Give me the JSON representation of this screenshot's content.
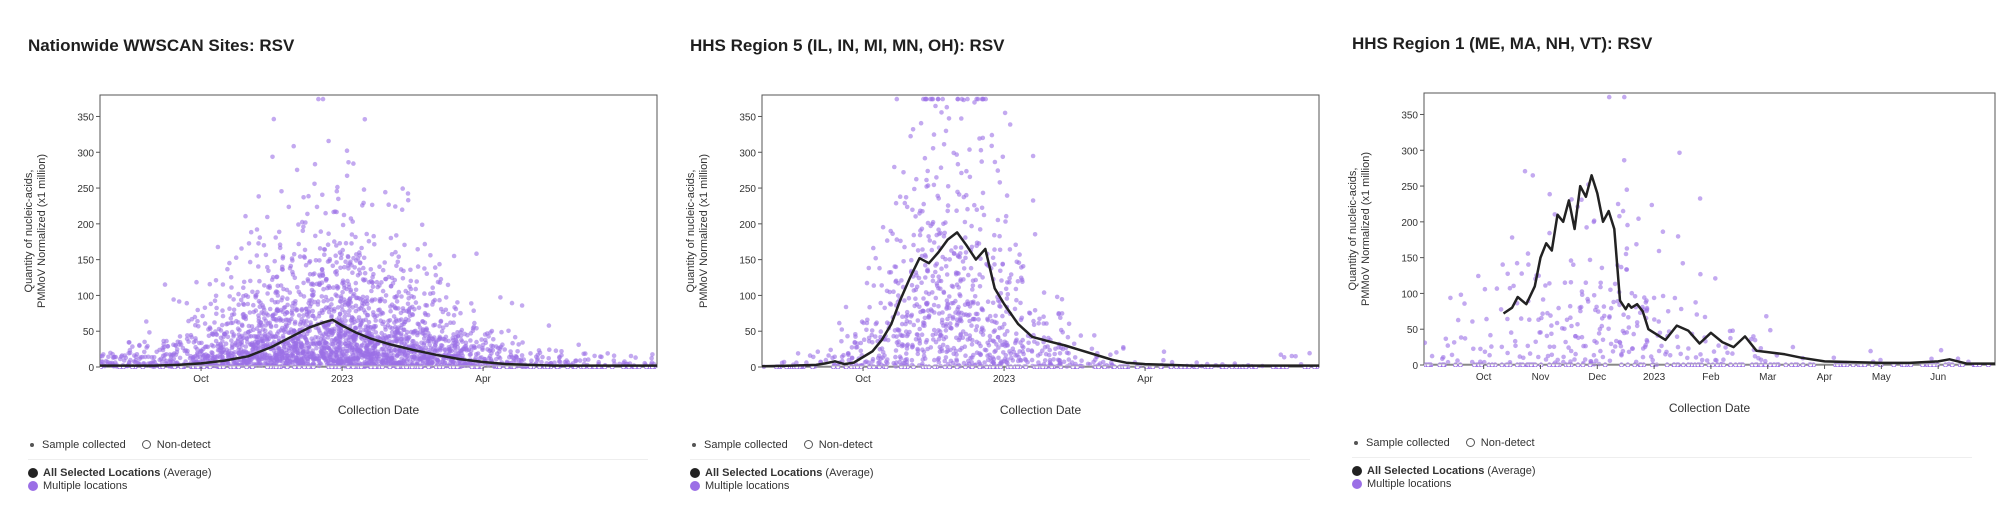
{
  "panels": [
    {
      "title": "Nationwide WWSCAN Sites: RSV",
      "legend": {
        "sample": "Sample collected",
        "nondetect": "Non-detect",
        "avg_bold": "All Selected Locations",
        "avg_suffix": " (Average)",
        "multi": "Multiple locations"
      },
      "colors": {
        "avg": "#222222",
        "points": "#9b6fe6"
      }
    },
    {
      "title": "HHS Region 5 (IL, IN, MI, MN, OH): RSV",
      "legend": {
        "sample": "Sample collected",
        "nondetect": "Non-detect",
        "avg_bold": "All Selected Locations",
        "avg_suffix": " (Average)",
        "multi": "Multiple locations"
      },
      "colors": {
        "avg": "#222222",
        "points": "#9b6fe6"
      }
    },
    {
      "title": "HHS Region 1 (ME, MA, NH, VT): RSV",
      "legend": {
        "sample": "Sample collected",
        "nondetect": "Non-detect",
        "avg_bold": "All Selected Locations",
        "avg_suffix": " (Average)",
        "multi": "Multiple locations"
      },
      "colors": {
        "avg": "#222222",
        "points": "#9b6fe6"
      }
    }
  ],
  "chart_data": [
    {
      "type": "scatter",
      "title": "Nationwide WWSCAN Sites: RSV",
      "xlabel": "Collection Date",
      "ylabel": [
        "Quantity of nucleic-acids,",
        "PMMoV Normalized (x1 million)"
      ],
      "x_unit": "months since Jul 1 2022",
      "xlim": [
        0.85,
        12.7
      ],
      "ylim": [
        0,
        380
      ],
      "yticks": [
        0,
        50,
        100,
        150,
        200,
        250,
        300,
        350
      ],
      "xticks": [
        {
          "label": "Oct",
          "x": 3.0
        },
        {
          "label": "2023",
          "x": 6.0
        },
        {
          "label": "Apr",
          "x": 9.0
        }
      ],
      "series": [
        {
          "name": "All Selected Locations (Average)",
          "x": [
            0.85,
            1.5,
            2.0,
            2.5,
            3.0,
            3.5,
            4.0,
            4.5,
            5.0,
            5.3,
            5.6,
            5.8,
            6.0,
            6.3,
            6.6,
            7.0,
            7.5,
            8.0,
            8.5,
            9.0,
            9.5,
            10.0,
            10.5,
            11.0,
            11.5,
            12.0,
            12.7
          ],
          "y": [
            2,
            2,
            2,
            3,
            5,
            9,
            15,
            28,
            45,
            55,
            62,
            66,
            58,
            48,
            40,
            32,
            24,
            17,
            11,
            7,
            4,
            3,
            2,
            2,
            2,
            2,
            2
          ]
        }
      ],
      "scatter": {
        "name": "Multiple locations",
        "peak_x": 5.8,
        "peak_y": 60,
        "spread_x": 1.9,
        "n_points": 2600,
        "nondetect_y": 0,
        "saturated_y": 380
      }
    },
    {
      "type": "scatter",
      "title": "HHS Region 5 (IL, IN, MI, MN, OH): RSV",
      "xlabel": "Collection Date",
      "ylabel": [
        "Quantity of nucleic-acids,",
        "PMMoV Normalized (x1 million)"
      ],
      "x_unit": "months since Jul 1 2022",
      "xlim": [
        0.85,
        12.7
      ],
      "ylim": [
        0,
        380
      ],
      "yticks": [
        0,
        50,
        100,
        150,
        200,
        250,
        300,
        350
      ],
      "xticks": [
        {
          "label": "Oct",
          "x": 3.0
        },
        {
          "label": "2023",
          "x": 6.0
        },
        {
          "label": "Apr",
          "x": 9.0
        }
      ],
      "series": [
        {
          "name": "All Selected Locations (Average)",
          "x": [
            0.85,
            1.5,
            2.0,
            2.2,
            2.4,
            2.6,
            2.8,
            3.0,
            3.2,
            3.4,
            3.6,
            3.8,
            4.0,
            4.2,
            4.4,
            4.6,
            4.8,
            5.0,
            5.2,
            5.4,
            5.6,
            5.8,
            6.0,
            6.3,
            6.6,
            7.0,
            7.3,
            7.6,
            8.0,
            8.3,
            8.6,
            9.0,
            9.5,
            10.0,
            11.0,
            12.7
          ],
          "y": [
            1,
            2,
            3,
            5,
            8,
            4,
            6,
            14,
            22,
            38,
            60,
            95,
            125,
            152,
            145,
            160,
            178,
            188,
            170,
            150,
            165,
            110,
            88,
            60,
            42,
            35,
            30,
            24,
            16,
            10,
            6,
            4,
            3,
            2,
            2,
            2
          ]
        }
      ],
      "scatter": {
        "name": "Multiple locations",
        "peak_x": 4.9,
        "peak_y": 130,
        "spread_x": 1.2,
        "n_points": 900,
        "nondetect_y": 0,
        "saturated_y": 380
      }
    },
    {
      "type": "scatter",
      "title": "HHS Region 1 (ME, MA, NH, VT): RSV",
      "xlabel": "Collection Date",
      "ylabel": [
        "Quantity of nucleic-acids,",
        "PMMoV Normalized (x1 million)"
      ],
      "x_unit": "months since Sep 1 2022",
      "xlim": [
        -0.05,
        10.0
      ],
      "ylim": [
        0,
        380
      ],
      "yticks": [
        0,
        50,
        100,
        150,
        200,
        250,
        300,
        350
      ],
      "xticks": [
        {
          "label": "Oct",
          "x": 1.0
        },
        {
          "label": "Nov",
          "x": 2.0
        },
        {
          "label": "Dec",
          "x": 3.0
        },
        {
          "label": "2023",
          "x": 4.0
        },
        {
          "label": "Feb",
          "x": 5.0
        },
        {
          "label": "Mar",
          "x": 6.0
        },
        {
          "label": "Apr",
          "x": 7.0
        },
        {
          "label": "May",
          "x": 8.0
        },
        {
          "label": "Jun",
          "x": 9.0
        }
      ],
      "series": [
        {
          "name": "All Selected Locations (Average)",
          "x": [
            1.35,
            1.5,
            1.6,
            1.75,
            1.9,
            2.0,
            2.1,
            2.2,
            2.3,
            2.4,
            2.5,
            2.6,
            2.7,
            2.8,
            2.9,
            3.0,
            3.1,
            3.2,
            3.3,
            3.4,
            3.5,
            3.55,
            3.6,
            3.7,
            3.8,
            3.9,
            4.0,
            4.2,
            4.4,
            4.6,
            4.8,
            5.0,
            5.2,
            5.4,
            5.6,
            5.8,
            6.0,
            6.3,
            6.6,
            7.0,
            7.5,
            8.0,
            8.5,
            9.0,
            9.2,
            9.5,
            10.0
          ],
          "y": [
            72,
            80,
            95,
            85,
            110,
            150,
            170,
            160,
            210,
            200,
            230,
            190,
            250,
            235,
            265,
            240,
            200,
            215,
            190,
            90,
            78,
            85,
            80,
            85,
            75,
            50,
            45,
            35,
            55,
            48,
            30,
            45,
            32,
            25,
            40,
            20,
            18,
            15,
            10,
            5,
            4,
            3,
            3,
            5,
            8,
            2,
            2
          ]
        }
      ],
      "scatter": {
        "name": "Multiple locations",
        "peak_x": 3.1,
        "peak_y": 90,
        "spread_x": 1.6,
        "n_points": 320,
        "nondetect_y": 0,
        "saturated_y": 380
      }
    }
  ]
}
